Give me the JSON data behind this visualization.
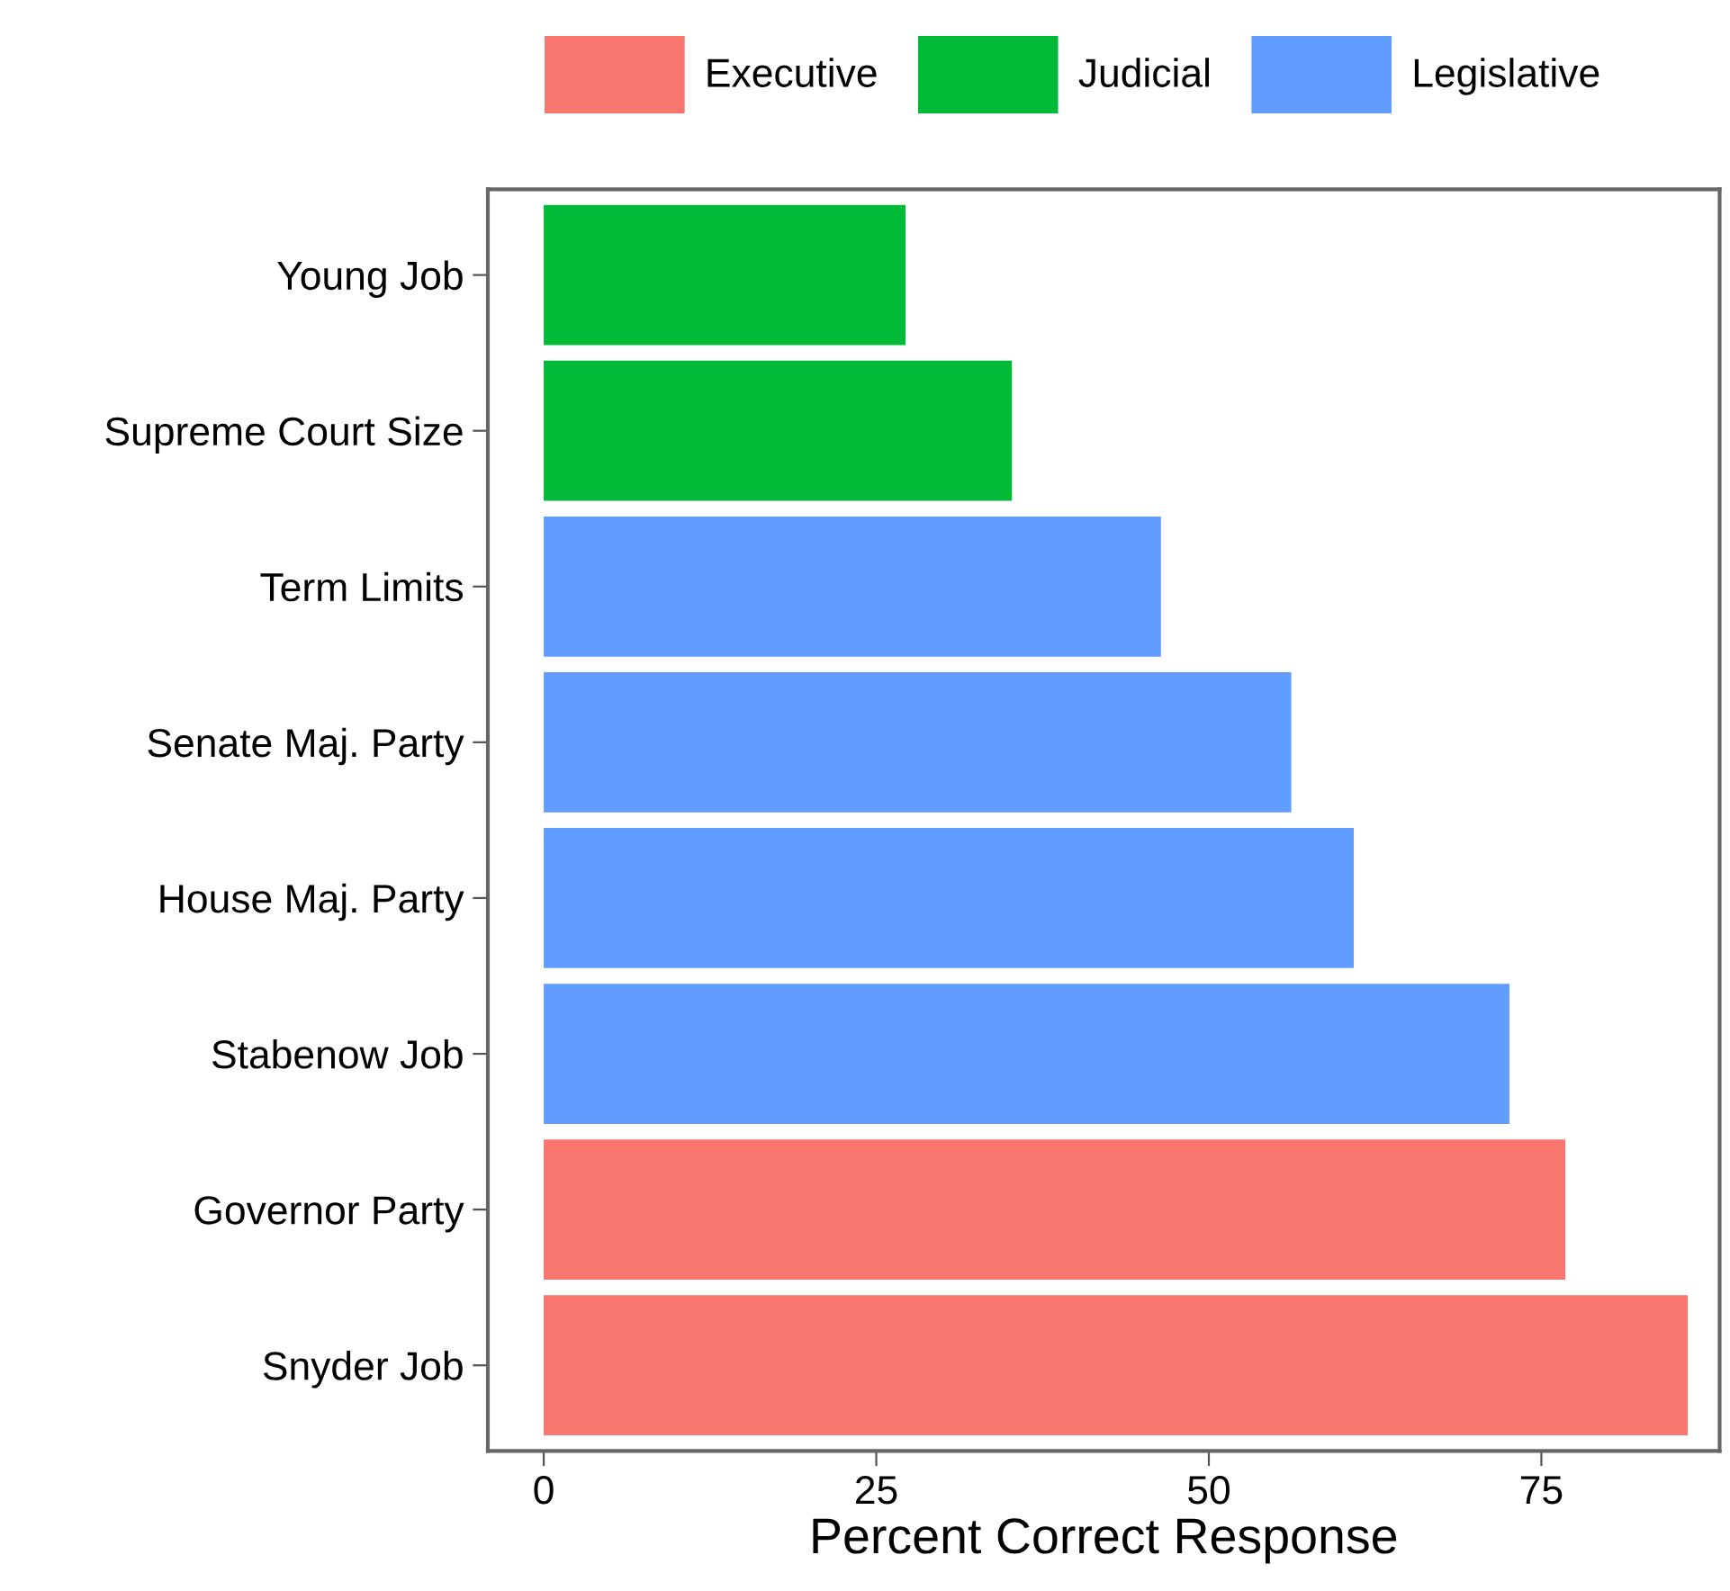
{
  "chart_data": {
    "type": "bar",
    "orientation": "horizontal",
    "xlabel": "Percent Correct Response",
    "categories": [
      "Young Job",
      "Supreme Court Size",
      "Term Limits",
      "Senate Maj. Party",
      "House Maj. Party",
      "Stabenow Job",
      "Governor Party",
      "Snyder Job"
    ],
    "series": [
      {
        "name": "Executive",
        "color": "#f8766d",
        "values": [
          null,
          null,
          null,
          null,
          null,
          null,
          76.8,
          86.0
        ]
      },
      {
        "name": "Judicial",
        "color": "#00ba38",
        "values": [
          27.2,
          35.2,
          null,
          null,
          null,
          null,
          null,
          null
        ]
      },
      {
        "name": "Legislative",
        "color": "#619cff",
        "values": [
          null,
          null,
          46.4,
          56.2,
          60.9,
          72.6,
          null,
          null
        ]
      }
    ],
    "xlim": [
      -4.2,
      88.4
    ],
    "xticks": [
      0,
      25,
      50,
      75
    ],
    "grid": false,
    "legend": "top"
  }
}
